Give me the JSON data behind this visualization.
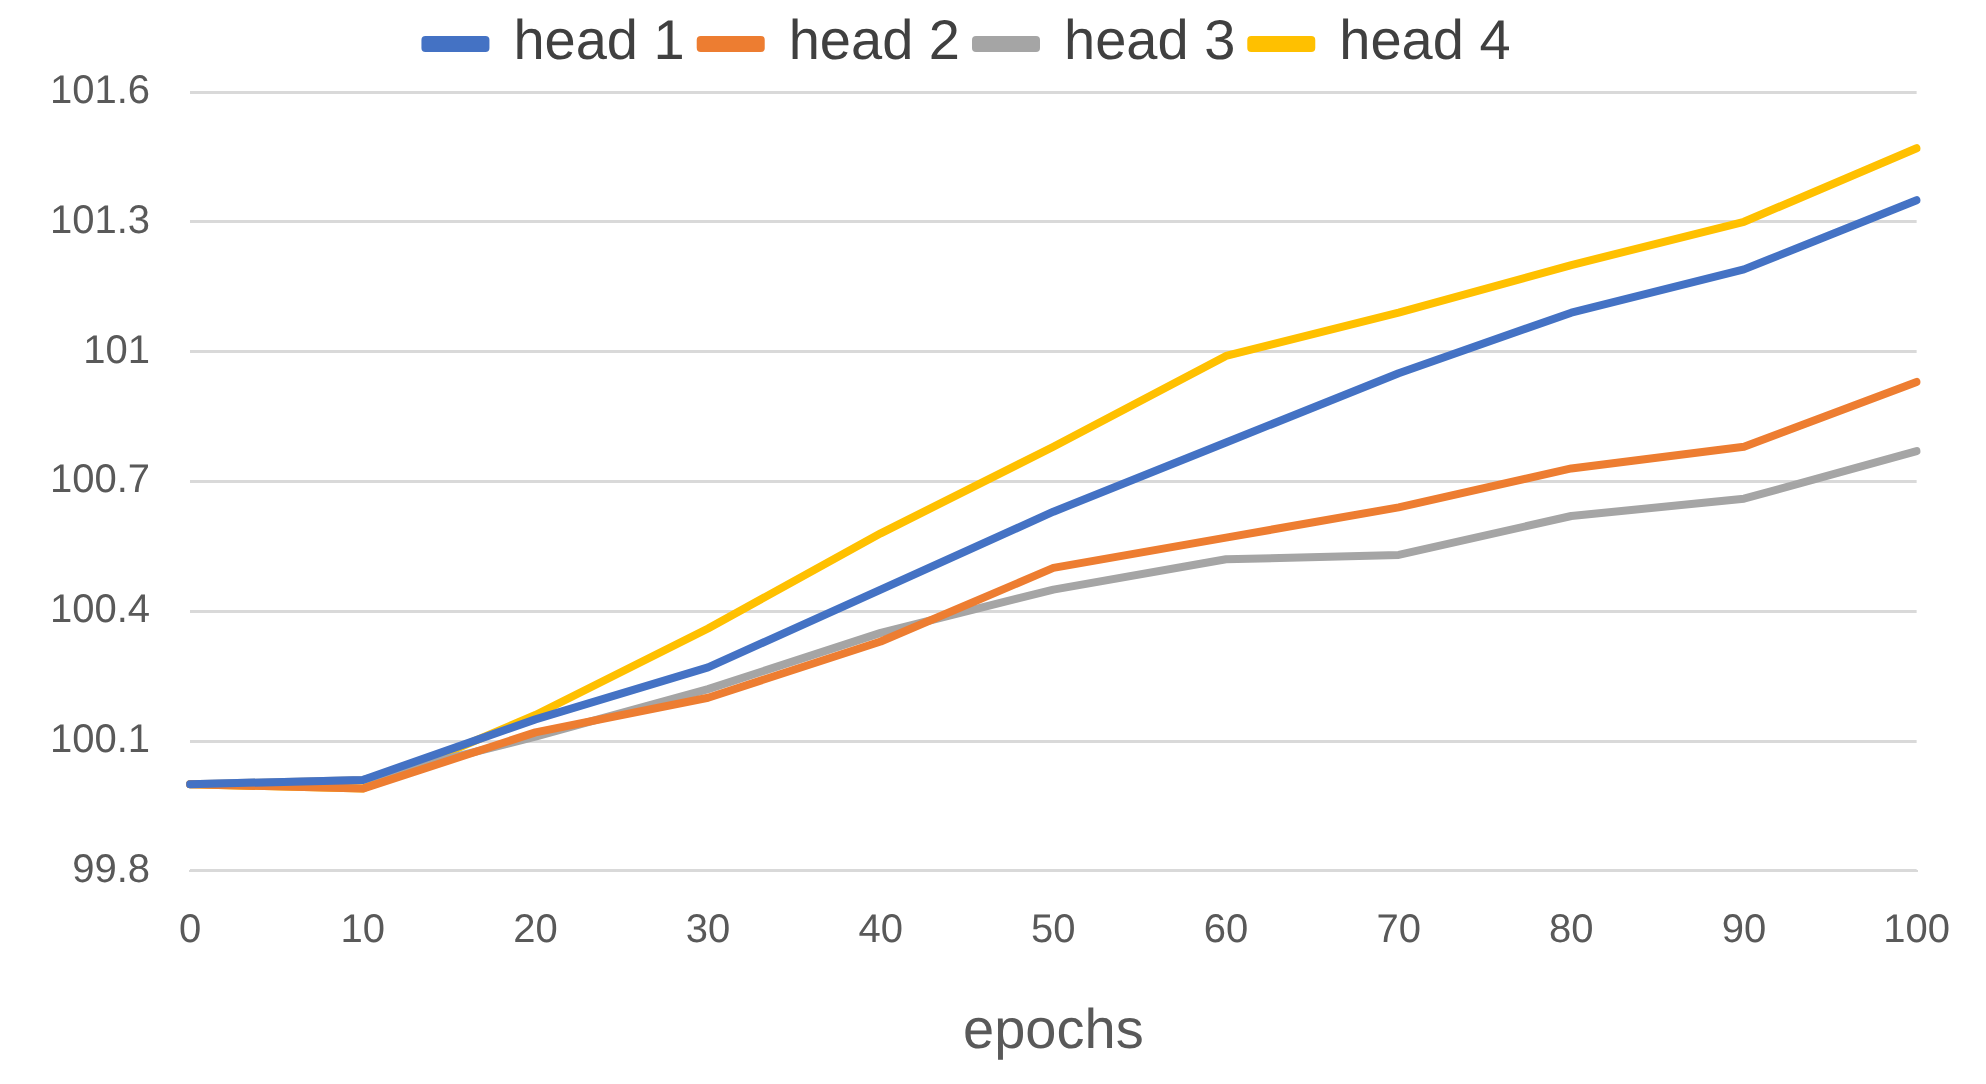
{
  "chart_data": {
    "type": "line",
    "xlabel": "epochs",
    "categories": [
      "0",
      "10",
      "20",
      "30",
      "40",
      "50",
      "60",
      "70",
      "80",
      "90",
      "100"
    ],
    "series": [
      {
        "name": "head 1",
        "color": "#4472c4",
        "values": [
          100.0,
          100.01,
          100.15,
          100.27,
          100.45,
          100.63,
          100.79,
          100.95,
          101.09,
          101.19,
          101.35
        ]
      },
      {
        "name": "head 2",
        "color": "#ed7d31",
        "values": [
          100.0,
          99.99,
          100.12,
          100.2,
          100.33,
          100.5,
          100.57,
          100.64,
          100.73,
          100.78,
          100.93
        ]
      },
      {
        "name": "head 3",
        "color": "#a5a5a5",
        "values": [
          100.0,
          100.01,
          100.11,
          100.22,
          100.35,
          100.45,
          100.52,
          100.53,
          100.62,
          100.66,
          100.77
        ]
      },
      {
        "name": "head 4",
        "color": "#ffc000",
        "values": [
          100.0,
          99.99,
          100.16,
          100.36,
          100.58,
          100.78,
          100.99,
          101.09,
          101.2,
          101.3,
          101.47
        ]
      }
    ],
    "ylim": [
      99.8,
      101.6
    ],
    "yticks": [
      99.8,
      100.1,
      100.4,
      100.7,
      101,
      101.3,
      101.6
    ],
    "grid": "y",
    "legend": "top",
    "marker": "none",
    "line_style": "solid"
  }
}
